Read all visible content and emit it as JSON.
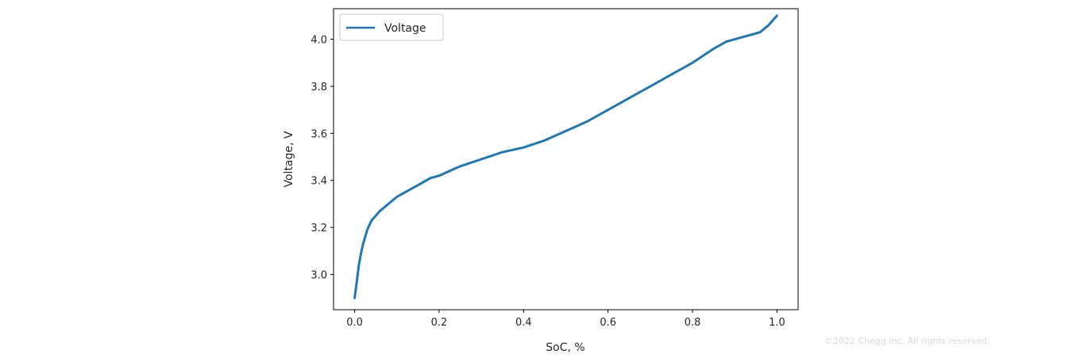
{
  "chart_data": {
    "type": "line",
    "title": "",
    "xlabel": "SoC, %",
    "ylabel": "Voltage, V",
    "xlim": [
      -0.05,
      1.05
    ],
    "ylim": [
      2.85,
      4.13
    ],
    "x_ticks": [
      0.0,
      0.2,
      0.4,
      0.6,
      0.8,
      1.0
    ],
    "x_tick_labels": [
      "0.0",
      "0.2",
      "0.4",
      "0.6",
      "0.8",
      "1.0"
    ],
    "y_ticks": [
      3.0,
      3.2,
      3.4,
      3.6,
      3.8,
      4.0
    ],
    "y_tick_labels": [
      "3.0",
      "3.2",
      "3.4",
      "3.6",
      "3.8",
      "4.0"
    ],
    "grid": false,
    "legend": {
      "position": "top-left",
      "entries": [
        "Voltage"
      ]
    },
    "series": [
      {
        "name": "Voltage",
        "color": "#1f77b4",
        "x": [
          0.0,
          0.005,
          0.01,
          0.015,
          0.02,
          0.03,
          0.04,
          0.05,
          0.06,
          0.08,
          0.1,
          0.12,
          0.15,
          0.18,
          0.2,
          0.25,
          0.3,
          0.35,
          0.4,
          0.45,
          0.5,
          0.55,
          0.6,
          0.65,
          0.7,
          0.75,
          0.8,
          0.85,
          0.88,
          0.9,
          0.92,
          0.94,
          0.96,
          0.98,
          0.99,
          1.0
        ],
        "values": [
          2.9,
          2.97,
          3.04,
          3.09,
          3.13,
          3.19,
          3.23,
          3.25,
          3.27,
          3.3,
          3.33,
          3.35,
          3.38,
          3.41,
          3.42,
          3.46,
          3.49,
          3.52,
          3.54,
          3.57,
          3.61,
          3.65,
          3.7,
          3.75,
          3.8,
          3.85,
          3.9,
          3.96,
          3.99,
          4.0,
          4.01,
          4.02,
          4.03,
          4.06,
          4.08,
          4.1
        ]
      }
    ]
  },
  "watermark": "©2022 Chegg Inc. All rights reserved."
}
